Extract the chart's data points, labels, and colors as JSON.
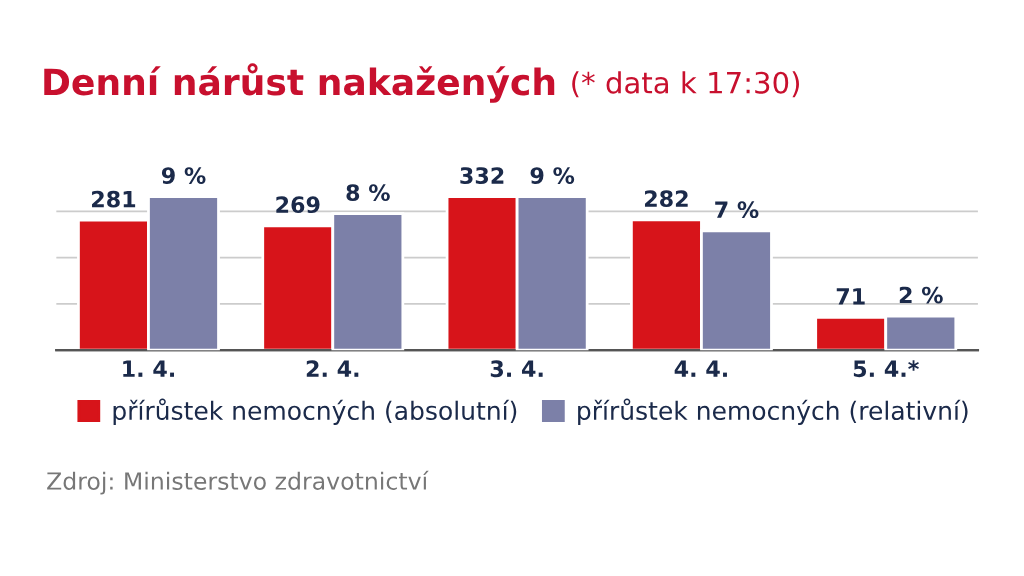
{
  "chart_data": {
    "type": "bar",
    "title": "Denní nárůst nakažených",
    "subtitle": "(* data k 17:30)",
    "categories": [
      "1. 4.",
      "2. 4.",
      "3. 4.",
      "4. 4.",
      "5. 4.*"
    ],
    "series": [
      {
        "name": "přírůstek nemocných (absolutní)",
        "color": "#d7141a",
        "values": [
          281,
          269,
          332,
          282,
          71
        ],
        "value_labels": [
          "281",
          "269",
          "332",
          "282",
          "71"
        ]
      },
      {
        "name": "přírůstek nemocných (relativní)",
        "color": "#7c80a8",
        "axis": "y2",
        "values": [
          9,
          8,
          9,
          7,
          2
        ],
        "value_labels": [
          "9 %",
          "8 %",
          "9 %",
          "7 %",
          "2 %"
        ]
      }
    ],
    "yticks": [
      {
        "value": 100,
        "label": null
      },
      {
        "value": 200,
        "label": null
      },
      {
        "value": 300,
        "label": null
      }
    ],
    "tick_labels": "x",
    "grid": "y",
    "legend": "bottom",
    "annotations": [
      "Zdroj: Ministerstvo zdravotnictví"
    ]
  }
}
